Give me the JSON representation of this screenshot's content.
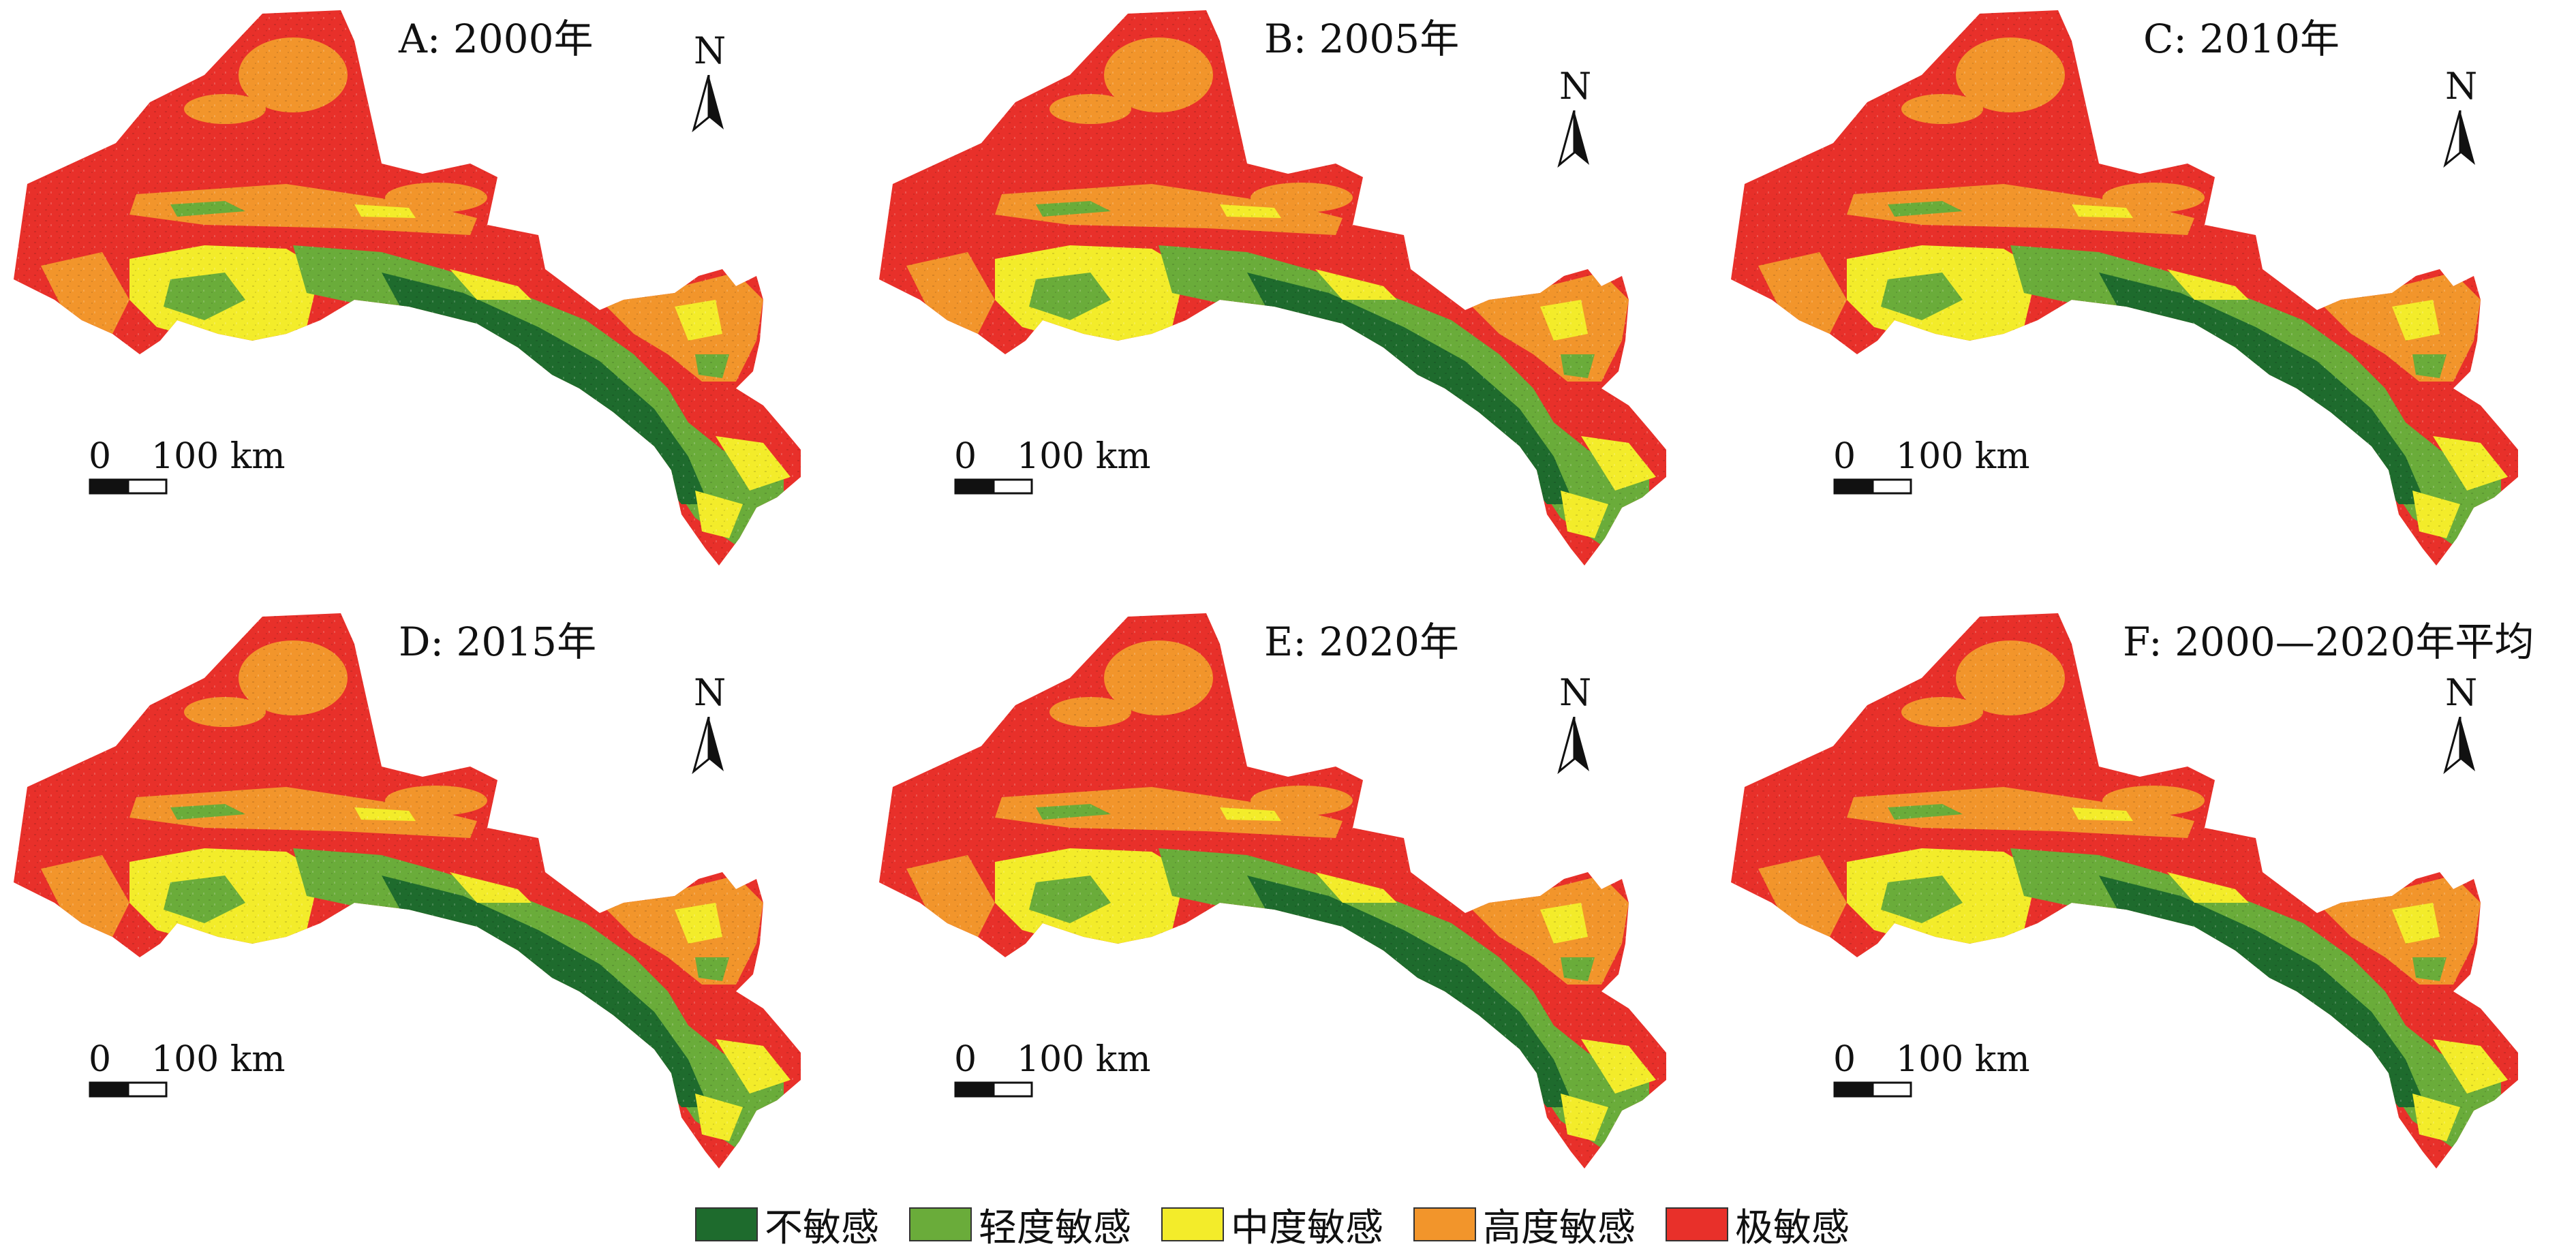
{
  "panels": [
    {
      "title": "A: 2000年"
    },
    {
      "title": "B: 2005年"
    },
    {
      "title": "C: 2010年"
    },
    {
      "title": "D: 2015年"
    },
    {
      "title": "E: 2020年"
    },
    {
      "title": "F: 2000—2020年平均"
    }
  ],
  "north_label": "N",
  "scale": {
    "zero": "0",
    "distance": "100 km"
  },
  "legend": [
    {
      "label": "不敏感",
      "color": "#1e6b2d"
    },
    {
      "label": "轻度敏感",
      "color": "#6aac3a"
    },
    {
      "label": "中度敏感",
      "color": "#f3ec2a"
    },
    {
      "label": "高度敏感",
      "color": "#f2952b"
    },
    {
      "label": "极敏感",
      "color": "#e8302a"
    }
  ]
}
